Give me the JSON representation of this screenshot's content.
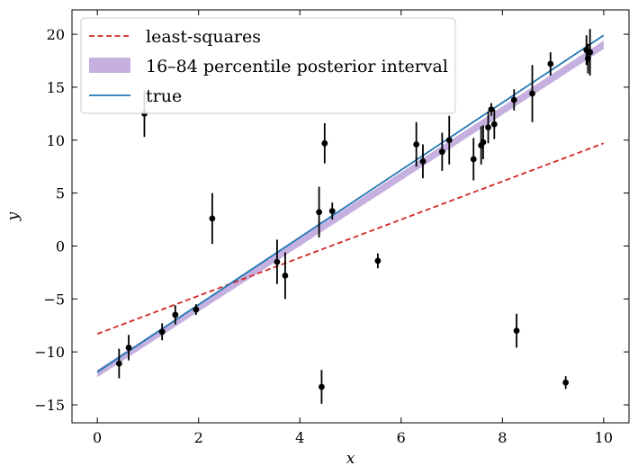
{
  "chart_data": {
    "type": "scatter",
    "xlabel": "x",
    "ylabel": "y",
    "xlim": [
      -0.5,
      10.5
    ],
    "ylim": [
      -16.7,
      22.3
    ],
    "xticks": [
      0,
      2,
      4,
      6,
      8,
      10
    ],
    "yticks": [
      -15,
      -10,
      -5,
      0,
      5,
      10,
      15,
      20
    ],
    "xtick_labels": [
      "0",
      "2",
      "4",
      "6",
      "8",
      "10"
    ],
    "ytick_labels": [
      "−15",
      "−10",
      "−5",
      "0",
      "5",
      "10",
      "15",
      "20"
    ],
    "grid": false,
    "legend_position": "top-left",
    "legend": [
      {
        "label": "least-squares",
        "color": "#d62728",
        "style": "dashed"
      },
      {
        "label": "16–84 percentile posterior interval",
        "color": "#c5b0df",
        "style": "band"
      },
      {
        "label": "true",
        "color": "#1f77b4",
        "style": "solid"
      }
    ],
    "lines": {
      "least_squares": {
        "x": [
          0,
          10
        ],
        "y": [
          -8.3,
          9.7
        ],
        "color": "#d62728"
      },
      "true": {
        "x": [
          0,
          10
        ],
        "y": [
          -11.9,
          19.9
        ],
        "color": "#1f77b4"
      },
      "posterior_band": {
        "x": [
          0,
          10
        ],
        "upper": [
          -11.7,
          19.4
        ],
        "lower": [
          -12.4,
          18.6
        ],
        "color": "#c5b0df"
      }
    },
    "points": [
      {
        "x": 0.43,
        "y": -11.1,
        "err": 1.4
      },
      {
        "x": 0.62,
        "y": -9.6,
        "err": 1.2
      },
      {
        "x": 0.93,
        "y": 12.5,
        "err": 2.2
      },
      {
        "x": 1.28,
        "y": -8.1,
        "err": 0.8
      },
      {
        "x": 1.54,
        "y": -6.5,
        "err": 0.9
      },
      {
        "x": 1.95,
        "y": -6.0,
        "err": 0.5
      },
      {
        "x": 2.27,
        "y": 2.6,
        "err": 2.4
      },
      {
        "x": 3.55,
        "y": -1.5,
        "err": 2.1
      },
      {
        "x": 3.71,
        "y": -2.8,
        "err": 2.2
      },
      {
        "x": 4.38,
        "y": 3.2,
        "err": 2.4
      },
      {
        "x": 4.43,
        "y": -13.3,
        "err": 1.6
      },
      {
        "x": 4.49,
        "y": 9.7,
        "err": 1.9
      },
      {
        "x": 4.64,
        "y": 3.3,
        "err": 0.8
      },
      {
        "x": 5.54,
        "y": -1.4,
        "err": 0.7
      },
      {
        "x": 6.3,
        "y": 9.6,
        "err": 2.1
      },
      {
        "x": 6.43,
        "y": 8.0,
        "err": 1.6
      },
      {
        "x": 6.81,
        "y": 8.9,
        "err": 1.8
      },
      {
        "x": 6.95,
        "y": 10.0,
        "err": 2.3
      },
      {
        "x": 7.43,
        "y": 8.2,
        "err": 2.0
      },
      {
        "x": 7.58,
        "y": 9.5,
        "err": 1.8
      },
      {
        "x": 7.62,
        "y": 9.8,
        "err": 1.6
      },
      {
        "x": 7.72,
        "y": 11.2,
        "err": 1.5
      },
      {
        "x": 7.78,
        "y": 12.9,
        "err": 0.6
      },
      {
        "x": 7.84,
        "y": 11.5,
        "err": 1.4
      },
      {
        "x": 8.23,
        "y": 13.8,
        "err": 1.0
      },
      {
        "x": 8.28,
        "y": -8.0,
        "err": 1.6
      },
      {
        "x": 8.59,
        "y": 14.4,
        "err": 2.7
      },
      {
        "x": 8.95,
        "y": 17.2,
        "err": 1.1
      },
      {
        "x": 9.25,
        "y": -12.9,
        "err": 0.6
      },
      {
        "x": 9.66,
        "y": 18.5,
        "err": 1.4
      },
      {
        "x": 9.69,
        "y": 17.7,
        "err": 1.4
      },
      {
        "x": 9.73,
        "y": 18.3,
        "err": 2.2
      }
    ]
  }
}
